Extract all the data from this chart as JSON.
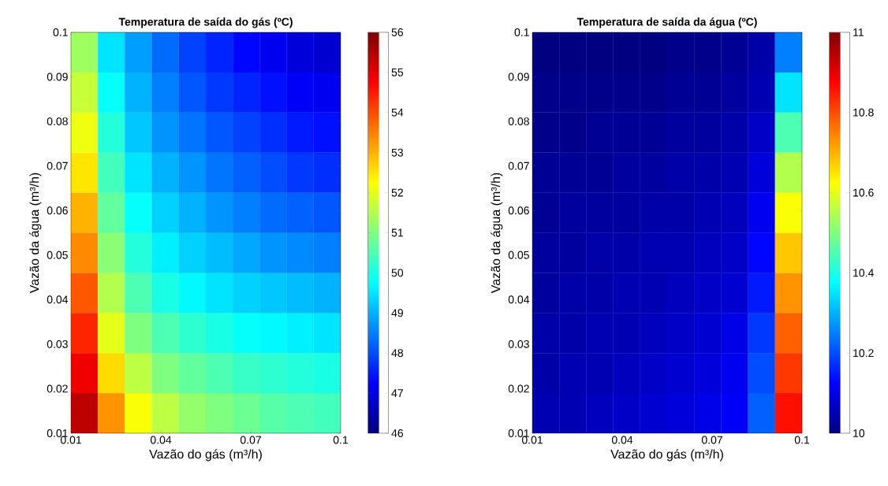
{
  "chart_data": [
    {
      "type": "heatmap",
      "title": "Temperatura de saída do gás (ºC)",
      "xlabel": "Vazão do gás (m³/h)",
      "ylabel": "Vazão da água (m³/h)",
      "xlim": [
        0.01,
        0.1
      ],
      "ylim": [
        0.01,
        0.1
      ],
      "xticks": [
        0.01,
        0.04,
        0.07,
        0.1
      ],
      "yticks": [
        0.01,
        0.02,
        0.03,
        0.04,
        0.05,
        0.06,
        0.07,
        0.08,
        0.09,
        0.1
      ],
      "clim": [
        46,
        56
      ],
      "cticks": [
        46,
        47,
        48,
        49,
        50,
        51,
        52,
        53,
        54,
        55,
        56
      ],
      "cells": [
        [
          51.3,
          49.5,
          48.8,
          48.3,
          47.9,
          47.6,
          47.3,
          47.1,
          46.9,
          46.8
        ],
        [
          51.7,
          49.8,
          49.0,
          48.5,
          48.1,
          47.8,
          47.6,
          47.4,
          47.2,
          47.1
        ],
        [
          52.1,
          50.1,
          49.2,
          48.7,
          48.4,
          48.1,
          47.9,
          47.7,
          47.5,
          47.4
        ],
        [
          52.5,
          50.4,
          49.5,
          49.0,
          48.7,
          48.4,
          48.2,
          48.0,
          47.8,
          47.7
        ],
        [
          53.0,
          50.7,
          49.8,
          49.3,
          49.0,
          48.7,
          48.5,
          48.3,
          48.2,
          48.1
        ],
        [
          53.4,
          51.1,
          50.1,
          49.6,
          49.3,
          49.1,
          48.9,
          48.7,
          48.6,
          48.5
        ],
        [
          53.9,
          51.5,
          50.5,
          50.0,
          49.7,
          49.5,
          49.3,
          49.2,
          49.1,
          49.0
        ],
        [
          54.4,
          52.0,
          51.0,
          50.5,
          50.2,
          50.0,
          49.8,
          49.7,
          49.6,
          49.5
        ],
        [
          54.9,
          52.6,
          51.6,
          51.0,
          50.7,
          50.5,
          50.3,
          50.2,
          50.1,
          50.0
        ],
        [
          55.4,
          53.3,
          52.2,
          51.6,
          51.2,
          51.0,
          50.8,
          50.6,
          50.5,
          50.4
        ]
      ]
    },
    {
      "type": "heatmap",
      "title": "Temperatura de saída da água (ºC)",
      "xlabel": "Vazão do gás (m³/h)",
      "ylabel": "Vazão da água (m³/h)",
      "xlim": [
        0.01,
        0.1
      ],
      "ylim": [
        0.01,
        0.1
      ],
      "xticks": [
        0.01,
        0.04,
        0.07,
        0.1
      ],
      "yticks": [
        0.01,
        0.02,
        0.03,
        0.04,
        0.05,
        0.06,
        0.07,
        0.08,
        0.09,
        0.1
      ],
      "clim": [
        10,
        11
      ],
      "cticks": [
        10,
        10.2,
        10.4,
        10.6,
        10.8,
        11
      ],
      "cells": [
        [
          10.0,
          10.0,
          10.0,
          10.0,
          10.0,
          10.01,
          10.01,
          10.02,
          10.04,
          10.25
        ],
        [
          10.01,
          10.01,
          10.01,
          10.01,
          10.01,
          10.02,
          10.02,
          10.03,
          10.05,
          10.35
        ],
        [
          10.01,
          10.01,
          10.02,
          10.02,
          10.02,
          10.03,
          10.03,
          10.04,
          10.07,
          10.45
        ],
        [
          10.02,
          10.02,
          10.02,
          10.03,
          10.03,
          10.04,
          10.04,
          10.05,
          10.09,
          10.55
        ],
        [
          10.02,
          10.03,
          10.03,
          10.03,
          10.04,
          10.04,
          10.05,
          10.06,
          10.11,
          10.62
        ],
        [
          10.03,
          10.03,
          10.04,
          10.04,
          10.05,
          10.05,
          10.06,
          10.07,
          10.13,
          10.68
        ],
        [
          10.03,
          10.04,
          10.04,
          10.05,
          10.05,
          10.06,
          10.07,
          10.08,
          10.15,
          10.73
        ],
        [
          10.04,
          10.04,
          10.05,
          10.05,
          10.06,
          10.07,
          10.08,
          10.1,
          10.18,
          10.78
        ],
        [
          10.04,
          10.05,
          10.05,
          10.06,
          10.07,
          10.08,
          10.09,
          10.11,
          10.2,
          10.82
        ],
        [
          10.05,
          10.05,
          10.06,
          10.07,
          10.08,
          10.09,
          10.1,
          10.12,
          10.22,
          10.86
        ]
      ]
    }
  ]
}
